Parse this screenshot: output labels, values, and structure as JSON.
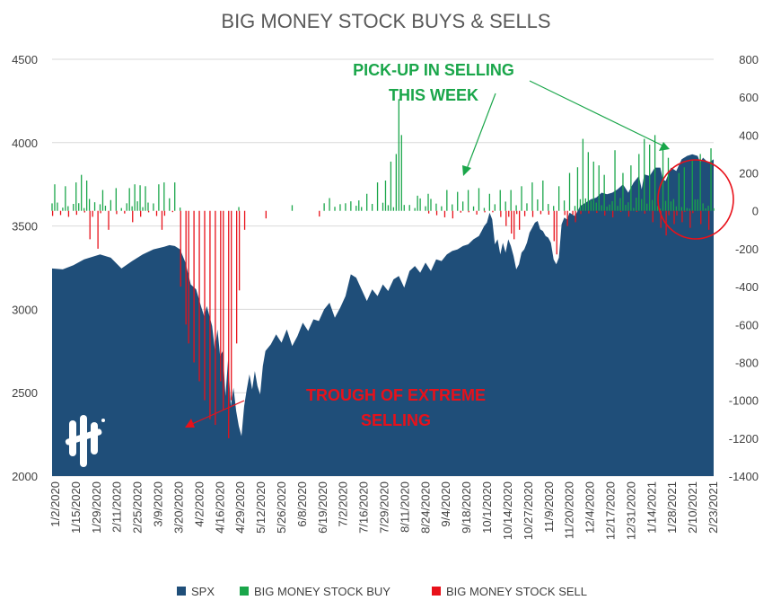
{
  "chart_data": {
    "type": "area",
    "title": "BIG MONEY STOCK BUYS & SELLS",
    "left_axis": {
      "ticks": [
        "4500",
        "4000",
        "3500",
        "3000",
        "2500",
        "2000"
      ],
      "min": 2000,
      "max": 4500
    },
    "right_axis": {
      "ticks": [
        "800",
        "600",
        "400",
        "200",
        "0",
        "-200",
        "-400",
        "-600",
        "-800",
        "-1000",
        "-1200",
        "-1400"
      ],
      "min": -1400,
      "max": 800
    },
    "x_tick_labels": [
      "1/2/2020",
      "1/15/2020",
      "1/29/2020",
      "2/11/2020",
      "2/25/2020",
      "3/9/2020",
      "3/20/2020",
      "4/2/2020",
      "4/16/2020",
      "4/29/2020",
      "5/12/2020",
      "5/26/2020",
      "6/8/2020",
      "6/19/2020",
      "7/2/2020",
      "7/16/2020",
      "7/29/2020",
      "8/11/2020",
      "8/24/2020",
      "9/4/2020",
      "9/18/2020",
      "10/1/2020",
      "10/14/2020",
      "10/27/2020",
      "11/9/2020",
      "11/20/2020",
      "12/4/2020",
      "12/17/2020",
      "12/31/2020",
      "1/14/2021",
      "1/28/2021",
      "2/10/2021",
      "2/23/2021"
    ],
    "spx_series": {
      "name": "SPX",
      "color": "#1f4e79",
      "points": [
        [
          0,
          3245
        ],
        [
          4,
          3240
        ],
        [
          8,
          3265
        ],
        [
          12,
          3300
        ],
        [
          18,
          3330
        ],
        [
          22,
          3310
        ],
        [
          26,
          3245
        ],
        [
          30,
          3290
        ],
        [
          34,
          3330
        ],
        [
          38,
          3360
        ],
        [
          42,
          3375
        ],
        [
          44,
          3385
        ],
        [
          46,
          3380
        ],
        [
          48,
          3360
        ],
        [
          50,
          3280
        ],
        [
          52,
          3150
        ],
        [
          54,
          3120
        ],
        [
          56,
          3010
        ],
        [
          57,
          2960
        ],
        [
          58,
          3020
        ],
        [
          60,
          2900
        ],
        [
          61,
          2760
        ],
        [
          62,
          2880
        ],
        [
          63,
          2720
        ],
        [
          64,
          2750
        ],
        [
          65,
          2480
        ],
        [
          66,
          2700
        ],
        [
          67,
          2420
        ],
        [
          68,
          2530
        ],
        [
          69,
          2390
        ],
        [
          70,
          2300
        ],
        [
          71,
          2240
        ],
        [
          72,
          2420
        ],
        [
          73,
          2520
        ],
        [
          74,
          2610
        ],
        [
          75,
          2520
        ],
        [
          76,
          2630
        ],
        [
          77,
          2540
        ],
        [
          78,
          2490
        ],
        [
          79,
          2660
        ],
        [
          80,
          2750
        ],
        [
          82,
          2790
        ],
        [
          84,
          2850
        ],
        [
          86,
          2800
        ],
        [
          88,
          2880
        ],
        [
          90,
          2780
        ],
        [
          92,
          2840
        ],
        [
          94,
          2920
        ],
        [
          96,
          2870
        ],
        [
          98,
          2940
        ],
        [
          100,
          2930
        ],
        [
          102,
          3000
        ],
        [
          104,
          3040
        ],
        [
          106,
          2950
        ],
        [
          108,
          3010
        ],
        [
          110,
          3080
        ],
        [
          112,
          3210
        ],
        [
          114,
          3190
        ],
        [
          116,
          3120
        ],
        [
          118,
          3050
        ],
        [
          120,
          3120
        ],
        [
          122,
          3080
        ],
        [
          124,
          3150
        ],
        [
          126,
          3110
        ],
        [
          128,
          3180
        ],
        [
          130,
          3200
        ],
        [
          132,
          3130
        ],
        [
          134,
          3230
        ],
        [
          136,
          3260
        ],
        [
          138,
          3220
        ],
        [
          140,
          3280
        ],
        [
          142,
          3230
        ],
        [
          144,
          3300
        ],
        [
          146,
          3290
        ],
        [
          148,
          3330
        ],
        [
          150,
          3350
        ],
        [
          152,
          3360
        ],
        [
          154,
          3380
        ],
        [
          156,
          3390
        ],
        [
          158,
          3420
        ],
        [
          160,
          3440
        ],
        [
          161,
          3470
        ],
        [
          162,
          3500
        ],
        [
          163,
          3520
        ],
        [
          164,
          3580
        ],
        [
          165,
          3540
        ],
        [
          166,
          3390
        ],
        [
          167,
          3420
        ],
        [
          168,
          3330
        ],
        [
          169,
          3400
        ],
        [
          170,
          3340
        ],
        [
          171,
          3420
        ],
        [
          172,
          3380
        ],
        [
          173,
          3320
        ],
        [
          174,
          3240
        ],
        [
          175,
          3270
        ],
        [
          176,
          3340
        ],
        [
          177,
          3360
        ],
        [
          178,
          3400
        ],
        [
          179,
          3460
        ],
        [
          180,
          3490
        ],
        [
          181,
          3520
        ],
        [
          182,
          3530
        ],
        [
          183,
          3480
        ],
        [
          184,
          3470
        ],
        [
          185,
          3440
        ],
        [
          186,
          3430
        ],
        [
          187,
          3400
        ],
        [
          188,
          3300
        ],
        [
          189,
          3270
        ],
        [
          190,
          3310
        ],
        [
          191,
          3510
        ],
        [
          192,
          3550
        ],
        [
          193,
          3540
        ],
        [
          194,
          3580
        ],
        [
          196,
          3560
        ],
        [
          198,
          3620
        ],
        [
          200,
          3640
        ],
        [
          202,
          3660
        ],
        [
          204,
          3670
        ],
        [
          206,
          3700
        ],
        [
          208,
          3690
        ],
        [
          210,
          3700
        ],
        [
          212,
          3720
        ],
        [
          214,
          3750
        ],
        [
          216,
          3700
        ],
        [
          218,
          3760
        ],
        [
          220,
          3800
        ],
        [
          221,
          3720
        ],
        [
          222,
          3810
        ],
        [
          224,
          3800
        ],
        [
          226,
          3850
        ],
        [
          228,
          3850
        ],
        [
          229,
          3780
        ],
        [
          230,
          3770
        ],
        [
          232,
          3850
        ],
        [
          234,
          3830
        ],
        [
          236,
          3900
        ],
        [
          238,
          3920
        ],
        [
          240,
          3930
        ],
        [
          242,
          3920
        ],
        [
          243,
          3880
        ],
        [
          244,
          3910
        ],
        [
          246,
          3880
        ],
        [
          248,
          3900
        ]
      ]
    },
    "buy_series": {
      "name": "BIG MONEY STOCK BUY",
      "color": "#1aa64a",
      "peaks": [
        [
          1,
          140
        ],
        [
          5,
          130
        ],
        [
          9,
          150
        ],
        [
          11,
          190
        ],
        [
          13,
          160
        ],
        [
          19,
          110
        ],
        [
          24,
          120
        ],
        [
          29,
          120
        ],
        [
          31,
          140
        ],
        [
          33,
          135
        ],
        [
          35,
          130
        ],
        [
          40,
          140
        ],
        [
          42,
          150
        ],
        [
          46,
          150
        ],
        [
          70,
          20
        ],
        [
          90,
          30
        ],
        [
          102,
          40
        ],
        [
          110,
          40
        ],
        [
          115,
          55
        ],
        [
          118,
          90
        ],
        [
          122,
          150
        ],
        [
          125,
          160
        ],
        [
          127,
          260
        ],
        [
          129,
          300
        ],
        [
          130,
          590
        ],
        [
          131,
          400
        ],
        [
          137,
          80
        ],
        [
          141,
          90
        ],
        [
          148,
          110
        ],
        [
          152,
          100
        ],
        [
          156,
          110
        ],
        [
          160,
          120
        ],
        [
          164,
          90
        ],
        [
          168,
          110
        ],
        [
          172,
          110
        ],
        [
          176,
          130
        ],
        [
          180,
          150
        ],
        [
          184,
          160
        ],
        [
          190,
          130
        ],
        [
          194,
          200
        ],
        [
          197,
          230
        ],
        [
          199,
          380
        ],
        [
          201,
          310
        ],
        [
          203,
          260
        ],
        [
          205,
          240
        ],
        [
          207,
          190
        ],
        [
          211,
          320
        ],
        [
          214,
          200
        ],
        [
          217,
          240
        ],
        [
          220,
          300
        ],
        [
          222,
          380
        ],
        [
          224,
          350
        ],
        [
          226,
          400
        ],
        [
          229,
          330
        ],
        [
          231,
          280
        ],
        [
          235,
          200
        ],
        [
          237,
          230
        ],
        [
          240,
          270
        ],
        [
          243,
          300
        ],
        [
          247,
          330
        ]
      ]
    },
    "sell_series": {
      "name": "BIG MONEY STOCK SELL",
      "color": "#e8111a",
      "peaks": [
        [
          14,
          -150
        ],
        [
          17,
          -200
        ],
        [
          21,
          -100
        ],
        [
          30,
          -60
        ],
        [
          41,
          -100
        ],
        [
          48,
          -400
        ],
        [
          50,
          -600
        ],
        [
          51,
          -700
        ],
        [
          53,
          -800
        ],
        [
          55,
          -900
        ],
        [
          57,
          -1000
        ],
        [
          59,
          -1100
        ],
        [
          61,
          -1130
        ],
        [
          63,
          -900
        ],
        [
          64,
          -1050
        ],
        [
          66,
          -1200
        ],
        [
          67,
          -1000
        ],
        [
          69,
          -700
        ],
        [
          70,
          -420
        ],
        [
          72,
          -100
        ],
        [
          80,
          -40
        ],
        [
          100,
          -30
        ],
        [
          150,
          -40
        ],
        [
          170,
          -80
        ],
        [
          172,
          -120
        ],
        [
          173,
          -150
        ],
        [
          175,
          -100
        ],
        [
          188,
          -160
        ],
        [
          189,
          -230
        ],
        [
          193,
          -80
        ],
        [
          196,
          -60
        ],
        [
          225,
          -60
        ],
        [
          228,
          -90
        ],
        [
          230,
          -130
        ],
        [
          233,
          -70
        ],
        [
          236,
          -60
        ],
        [
          239,
          -90
        ],
        [
          243,
          -70
        ],
        [
          246,
          -100
        ]
      ]
    },
    "annotations": {
      "selling_text": [
        "PICK-UP IN SELLING",
        "THIS WEEK"
      ],
      "trough_text": [
        "TROUGH OF EXTREME",
        "SELLING"
      ]
    },
    "legend": [
      {
        "label": "SPX",
        "color": "#1f4e79"
      },
      {
        "label": "BIG MONEY STOCK BUY",
        "color": "#1aa64a"
      },
      {
        "label": "BIG MONEY STOCK SELL",
        "color": "#e8111a"
      }
    ],
    "grid": true,
    "legend_position": "bottom"
  }
}
